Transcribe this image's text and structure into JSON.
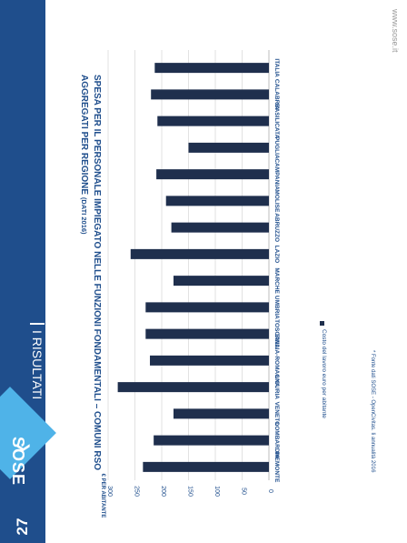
{
  "slide": {
    "logo": "SOSE",
    "logo_icon": "sose-arrows-icon",
    "section_title": "I RISULTATI",
    "page_number": "27",
    "website": "www.sose.it",
    "footnote": "* Fonte dati SOSE - OpenCivitas. Ii annualità 2016",
    "chart_title": "SPESA PER IL PERSONALE IMPIEGATO NELLE FUNZIONI FONDAMENTALI – COMUNI RSO AGGREGATI PER REGIONE",
    "chart_title_sub": "(DATI 2016)",
    "colors": {
      "panel": "#1f4e8c",
      "accent": "#4fb3e8",
      "bar": "#1f2f4d",
      "text": "#1f4e8c"
    }
  },
  "chart_data": {
    "type": "bar",
    "title": "SPESA PER IL PERSONALE IMPIEGATO NELLE FUNZIONI FONDAMENTALI – COMUNI RSO AGGREGATI PER REGIONE (DATI 2016)",
    "ylabel": "€ PER ABITANTE",
    "xlabel": "",
    "ylim": [
      0,
      300
    ],
    "yticks": [
      "0",
      "50",
      "100",
      "150",
      "200",
      "250",
      "300"
    ],
    "categories": [
      "PIEMONTE",
      "LOMBARDIA",
      "VENETO",
      "LIGURIA",
      "EMILIA-ROMAGNA",
      "TOSCANA",
      "UMBRIA",
      "MARCHE",
      "LAZIO",
      "ABRUZZO",
      "MOLISE",
      "CAMPANIA",
      "PUGLIA",
      "BASILICATA",
      "CALABRIA",
      "ITALIA"
    ],
    "series": [
      {
        "name": "Costo del lavoro euro per abitante",
        "values": [
          235,
          215,
          178,
          282,
          222,
          230,
          230,
          178,
          258,
          182,
          192,
          210,
          150,
          208,
          220,
          213
        ]
      }
    ],
    "grid": true,
    "legend_position": "bottom"
  }
}
